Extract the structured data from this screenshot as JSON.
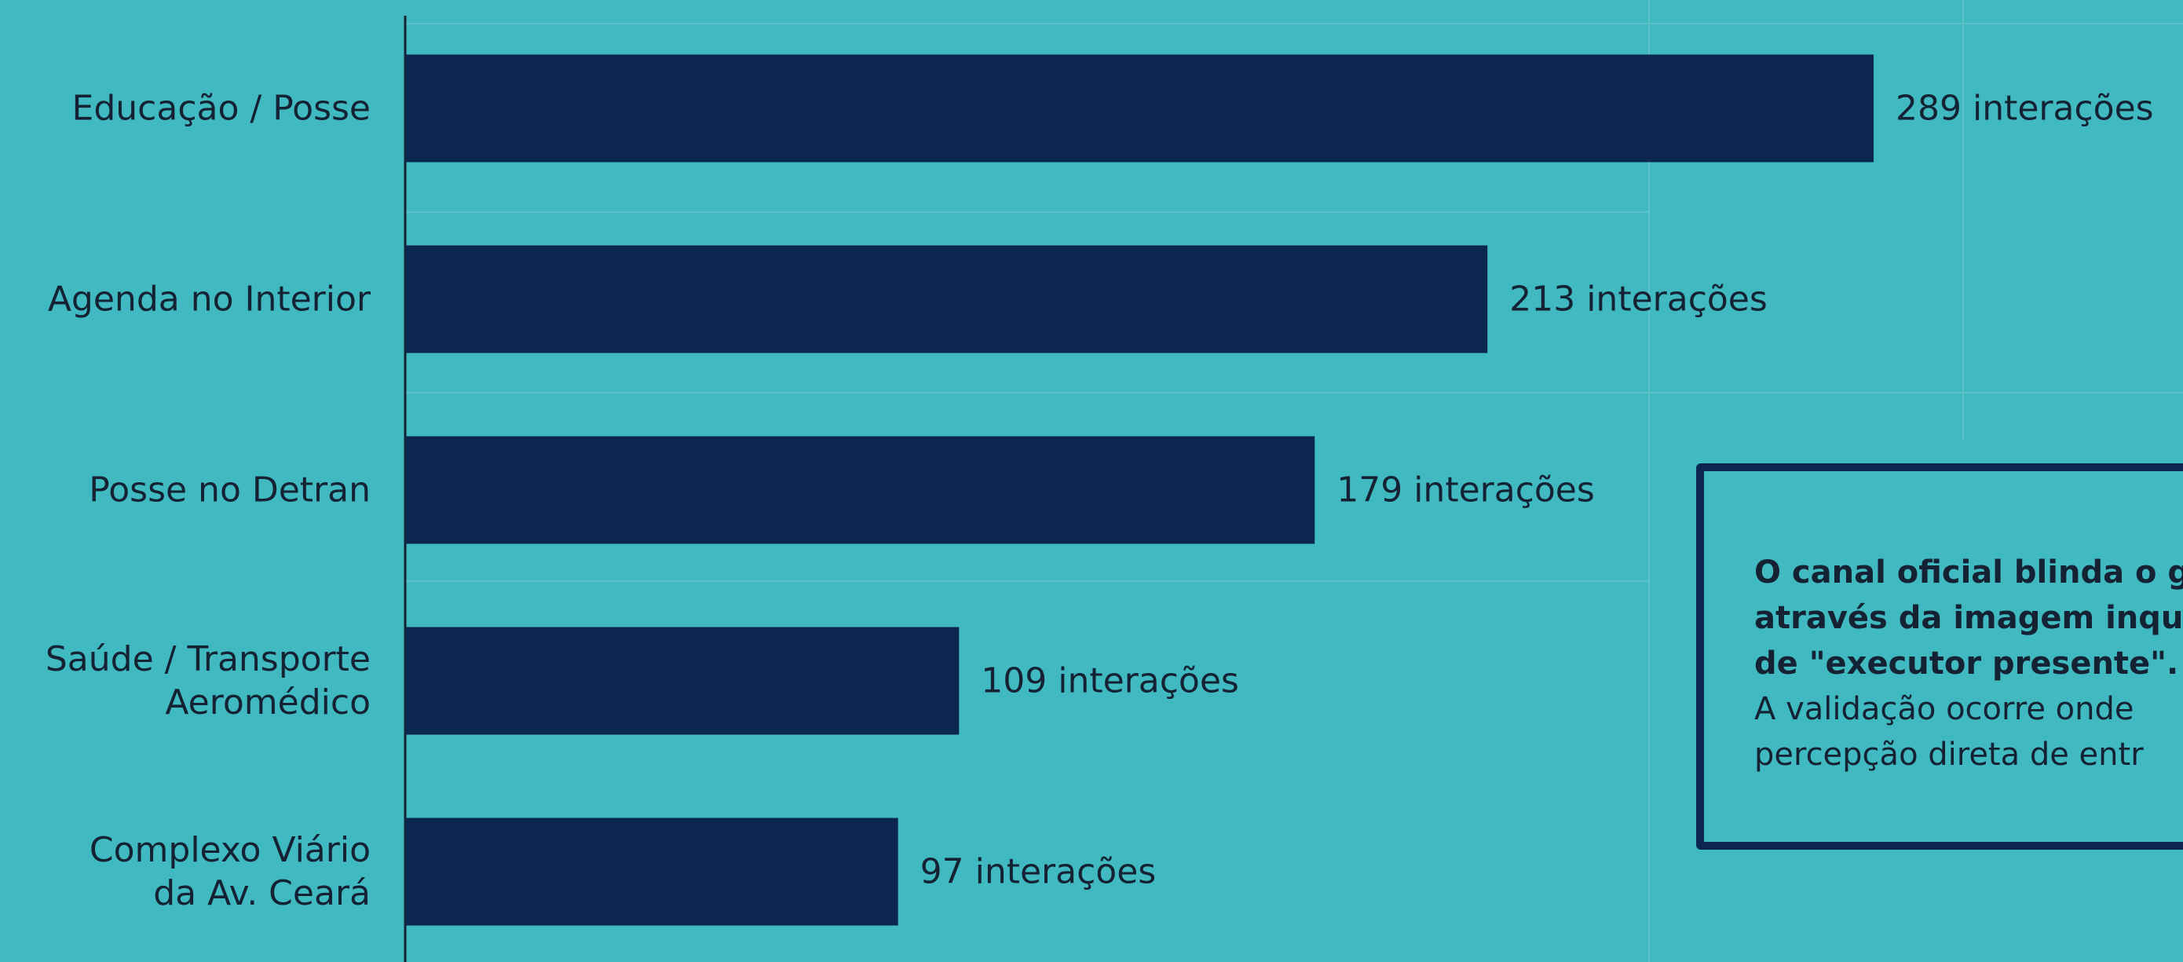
{
  "chart_data": {
    "type": "bar",
    "orientation": "horizontal",
    "categories": [
      "Educação / Posse",
      "Agenda no Interior",
      "Posse no Detran",
      "Saúde / Transporte\nAeromédico",
      "Complexo Viário\nda Av. Ceará"
    ],
    "values": [
      289,
      213,
      179,
      109,
      97
    ],
    "value_labels": [
      "289 interações",
      "213 interações",
      "179 interações",
      "109 interações",
      "97 interações"
    ],
    "color": "#0b2750"
  },
  "callout": {
    "bold_lines": [
      "O canal oficial blinda o g",
      "através da imagem inqu",
      "de \"executor presente\"."
    ],
    "lines": [
      "A validação ocorre onde",
      "percepção direta de entr"
    ]
  }
}
